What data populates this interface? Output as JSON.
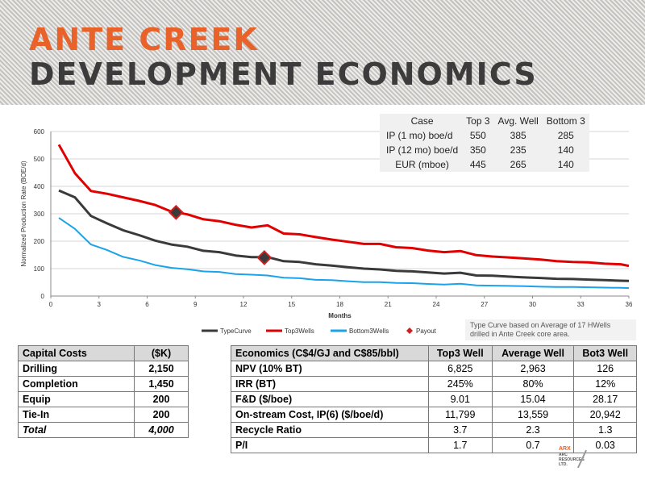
{
  "header": {
    "title_line1": "ANTE CREEK",
    "title_line2": "DEVELOPMENT ECONOMICS"
  },
  "case_table": {
    "headers": [
      "Case",
      "Top 3",
      "Avg. Well",
      "Bottom 3"
    ],
    "rows": [
      [
        "IP (1 mo) boe/d",
        "550",
        "385",
        "285"
      ],
      [
        "IP (12 mo) boe/d",
        "350",
        "235",
        "140"
      ],
      [
        "EUR (mboe)",
        "445",
        "265",
        "140"
      ]
    ]
  },
  "note": "Type Curve based on Average of 17 HWells drilled in Ante Creek core area.",
  "colors": {
    "typecurve": "#3a3a3a",
    "top3": "#e00000",
    "bottom3": "#1aa3e8",
    "payout": "#cc2222",
    "accent": "#e8622a"
  },
  "chart_data": {
    "type": "line",
    "xlabel": "Months",
    "ylabel": "Normalized Production Rate (BOE/d)",
    "xlim": [
      0,
      36
    ],
    "ylim": [
      0,
      600
    ],
    "xticks": [
      0,
      3,
      6,
      9,
      12,
      15,
      18,
      21,
      24,
      27,
      30,
      33,
      36
    ],
    "yticks": [
      0,
      100,
      200,
      300,
      400,
      500,
      600
    ],
    "grid": true,
    "legend_position": "bottom",
    "x": [
      0.5,
      1.5,
      2.5,
      3.5,
      4.5,
      5.5,
      6.5,
      7.5,
      8.5,
      9.5,
      10.5,
      11.5,
      12.5,
      13.5,
      14.5,
      15.5,
      16.5,
      17.5,
      18.5,
      19.5,
      20.5,
      21.5,
      22.5,
      23.5,
      24.5,
      25.5,
      26.5,
      27.5,
      28.5,
      29.5,
      30.5,
      31.5,
      32.5,
      33.5,
      34.5,
      35.5,
      36
    ],
    "series": [
      {
        "name": "TypeCurve",
        "values": [
          385,
          360,
          292,
          265,
          240,
          222,
          202,
          188,
          180,
          165,
          160,
          148,
          142,
          142,
          127,
          124,
          116,
          111,
          105,
          100,
          97,
          92,
          90,
          86,
          82,
          85,
          75,
          74,
          71,
          68,
          66,
          63,
          62,
          60,
          58,
          56,
          55
        ]
      },
      {
        "name": "Top3Wells",
        "values": [
          552,
          448,
          383,
          373,
          360,
          347,
          332,
          308,
          298,
          280,
          273,
          260,
          250,
          258,
          228,
          225,
          215,
          206,
          198,
          190,
          190,
          178,
          175,
          166,
          160,
          164,
          149,
          144,
          141,
          137,
          133,
          127,
          124,
          123,
          118,
          116,
          110
        ]
      },
      {
        "name": "Bottom3Wells",
        "values": [
          285,
          245,
          188,
          168,
          143,
          130,
          113,
          103,
          98,
          90,
          88,
          80,
          78,
          75,
          67,
          65,
          59,
          58,
          54,
          51,
          51,
          48,
          47,
          44,
          42,
          45,
          39,
          38,
          37,
          36,
          34,
          33,
          33,
          32,
          31,
          30,
          29
        ]
      }
    ],
    "payout": {
      "name": "Payout",
      "points": [
        {
          "x": 7.8,
          "y": 305
        },
        {
          "x": 13.3,
          "y": 140
        }
      ]
    }
  },
  "capital": {
    "headers": [
      "Capital Costs",
      "($K)"
    ],
    "rows": [
      [
        "Drilling",
        "2,150"
      ],
      [
        "Completion",
        "1,450"
      ],
      [
        "Equip",
        "200"
      ],
      [
        "Tie-In",
        "200"
      ]
    ],
    "total": [
      "Total",
      "4,000"
    ]
  },
  "economics": {
    "headers": [
      "Economics  (C$4/GJ and   C$85/bbl)",
      "Top3 Well",
      "Average Well",
      "Bot3 Well"
    ],
    "rows": [
      [
        "NPV (10% BT)",
        "6,825",
        "2,963",
        "126"
      ],
      [
        "IRR (BT)",
        "245%",
        "80%",
        "12%"
      ],
      [
        "F&D ($/boe)",
        "9.01",
        "15.04",
        "28.17"
      ],
      [
        "On-stream Cost, IP(6) ($/boe/d)",
        "11,799",
        "13,559",
        "20,942"
      ],
      [
        "Recycle Ratio",
        "3.7",
        "2.3",
        "1.3"
      ],
      [
        "P/I",
        "1.7",
        "0.7",
        "0.03"
      ]
    ]
  },
  "logo": {
    "line1": "ARX",
    "line2": "ARC",
    "line3": "RESOURCES",
    "line4": "LTD."
  }
}
